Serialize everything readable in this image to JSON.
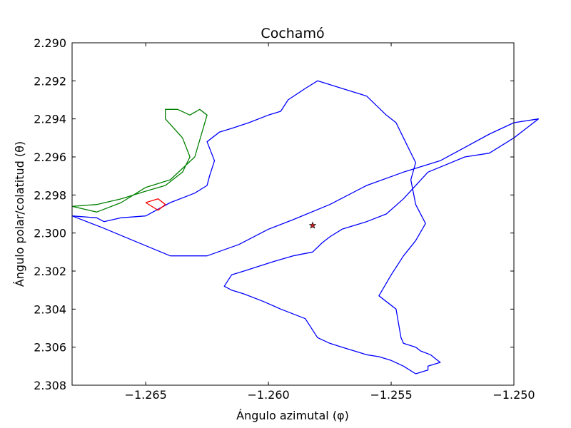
{
  "chart_data": {
    "type": "line",
    "title": "Cochamó",
    "xlabel": "Ángulo azimutal (φ)",
    "ylabel": "Ángulo polar/colatitud (θ)",
    "xlim": [
      -1.268,
      -1.25
    ],
    "ylim": [
      2.308,
      2.29
    ],
    "y_inverted": true,
    "grid": false,
    "x_ticks": [
      -1.265,
      -1.26,
      -1.255,
      -1.25
    ],
    "x_tick_labels": [
      "−1.265",
      "−1.260",
      "−1.255",
      "−1.250"
    ],
    "y_ticks": [
      2.29,
      2.292,
      2.294,
      2.296,
      2.298,
      2.3,
      2.302,
      2.304,
      2.306,
      2.308
    ],
    "y_tick_labels": [
      "2.290",
      "2.292",
      "2.294",
      "2.296",
      "2.298",
      "2.300",
      "2.302",
      "2.304",
      "2.306",
      "2.308"
    ],
    "colors": {
      "blue": "#0000ff",
      "green": "#008000",
      "red": "#ff0000",
      "star": "#d62728"
    },
    "series": [
      {
        "color": "blue",
        "x": [
          -1.268,
          -1.267,
          -1.2667,
          -1.266,
          -1.265,
          -1.264,
          -1.263,
          -1.2625,
          -1.2624,
          -1.2622,
          -1.2625,
          -1.262,
          -1.2615,
          -1.2608,
          -1.26,
          -1.2595,
          -1.2592,
          -1.2585,
          -1.258,
          -1.257,
          -1.256,
          -1.2552,
          -1.2548,
          -1.2545,
          -1.254,
          -1.2542,
          -1.254,
          -1.2536,
          -1.254,
          -1.2545,
          -1.255,
          -1.2555,
          -1.2548,
          -1.2546,
          -1.2545,
          -1.254,
          -1.2538,
          -1.2534,
          -1.2532,
          -1.253,
          -1.2535,
          -1.2535,
          -1.254,
          -1.2545,
          -1.255,
          -1.2555,
          -1.256,
          -1.2565,
          -1.257,
          -1.2575,
          -1.258,
          -1.2585,
          -1.2595,
          -1.2602,
          -1.261,
          -1.2615,
          -1.2618,
          -1.2615,
          -1.261,
          -1.2598,
          -1.259,
          -1.2582,
          -1.2578,
          -1.2575,
          -1.257,
          -1.256,
          -1.2552,
          -1.2545,
          -1.254,
          -1.2535,
          -1.252,
          -1.251,
          -1.25,
          -1.2495,
          -1.249,
          -1.25,
          -1.251,
          -1.252,
          -1.253,
          -1.2545,
          -1.256,
          -1.2575,
          -1.259,
          -1.26,
          -1.2612,
          -1.2625,
          -1.264,
          -1.2655,
          -1.2668,
          -1.268
        ],
        "y": [
          2.2991,
          2.2992,
          2.2994,
          2.2992,
          2.2991,
          2.2984,
          2.2979,
          2.2975,
          2.297,
          2.2962,
          2.2952,
          2.2947,
          2.2945,
          2.2942,
          2.2938,
          2.2936,
          2.293,
          2.2924,
          2.292,
          2.2924,
          2.2928,
          2.2938,
          2.2942,
          2.295,
          2.2963,
          2.2972,
          2.2985,
          2.2995,
          2.3004,
          2.3012,
          2.3022,
          2.3033,
          2.304,
          2.3055,
          2.3058,
          2.306,
          2.3062,
          2.3064,
          2.3066,
          2.3068,
          2.307,
          2.3072,
          2.3074,
          2.307,
          2.3067,
          2.3065,
          2.3064,
          2.3062,
          2.306,
          2.3058,
          2.3055,
          2.3045,
          2.304,
          2.3036,
          2.3032,
          2.303,
          2.3028,
          2.3022,
          2.302,
          2.3015,
          2.3012,
          2.301,
          2.3005,
          2.3002,
          2.2998,
          2.2994,
          2.299,
          2.2982,
          2.2975,
          2.2968,
          2.296,
          2.2958,
          2.295,
          2.2945,
          2.294,
          2.2942,
          2.2948,
          2.2955,
          2.2962,
          2.2968,
          2.2975,
          2.2985,
          2.2993,
          2.2998,
          2.3006,
          2.3012,
          2.3012,
          2.3004,
          2.2997,
          2.2991
        ]
      },
      {
        "color": "green",
        "x": [
          -1.268,
          -1.267,
          -1.266,
          -1.265,
          -1.264,
          -1.263,
          -1.2625,
          -1.2628,
          -1.2632,
          -1.2637,
          -1.2642,
          -1.2642,
          -1.2635,
          -1.2632,
          -1.2635,
          -1.2642,
          -1.265,
          -1.266,
          -1.267,
          -1.268
        ],
        "y": [
          2.2986,
          2.2989,
          2.2984,
          2.2976,
          2.2972,
          2.296,
          2.2938,
          2.2935,
          2.2938,
          2.2935,
          2.2935,
          2.294,
          2.295,
          2.296,
          2.2968,
          2.2975,
          2.2978,
          2.2982,
          2.2985,
          2.2986
        ]
      },
      {
        "color": "red",
        "x": [
          -1.265,
          -1.2645,
          -1.2642,
          -1.2645,
          -1.265
        ],
        "y": [
          2.2984,
          2.2982,
          2.2985,
          2.2988,
          2.2984
        ]
      }
    ],
    "markers": [
      {
        "type": "star",
        "color": "star",
        "x": -1.2582,
        "y": 2.2996
      }
    ]
  }
}
